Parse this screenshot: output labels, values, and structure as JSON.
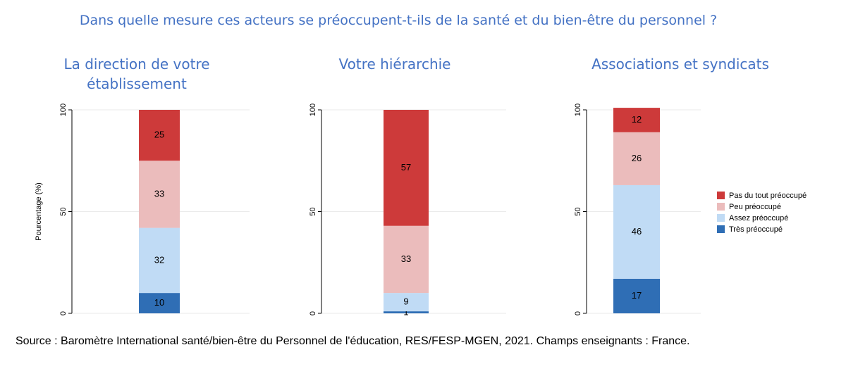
{
  "title": "Dans quelle mesure ces acteurs se préoccupent-t-ils de la santé et du bien-être du personnel ?",
  "source": "Source : Baromètre International santé/bien-être du Personnel de l'éducation, RES/FESP-MGEN, 2021. Champs enseignants : France.",
  "colors": {
    "Pas du tout préoccupé": "#cd3a3a",
    "Peu préoccupé": "#ebbcbc",
    "Assez préoccupé": "#c0dbf5",
    "Très préoccupé": "#2f6eb5"
  },
  "chart_data": [
    {
      "type": "bar",
      "stacked": true,
      "title": "La direction de votre établissement",
      "ylabel": "Pourcentage (%)",
      "ylim": [
        0,
        100
      ],
      "yticks": [
        "0",
        "50",
        "100"
      ],
      "grid": true,
      "series": [
        {
          "name": "Très préoccupé",
          "values": [
            10
          ]
        },
        {
          "name": "Assez préoccupé",
          "values": [
            32
          ]
        },
        {
          "name": "Peu préoccupé",
          "values": [
            33
          ]
        },
        {
          "name": "Pas du tout préoccupé",
          "values": [
            25
          ]
        }
      ]
    },
    {
      "type": "bar",
      "stacked": true,
      "title": "Votre hiérarchie",
      "ylabel": "",
      "ylim": [
        0,
        100
      ],
      "yticks": [
        "0",
        "50",
        "100"
      ],
      "grid": true,
      "series": [
        {
          "name": "Très préoccupé",
          "values": [
            1
          ]
        },
        {
          "name": "Assez préoccupé",
          "values": [
            9
          ]
        },
        {
          "name": "Peu préoccupé",
          "values": [
            33
          ]
        },
        {
          "name": "Pas du tout préoccupé",
          "values": [
            57
          ]
        }
      ]
    },
    {
      "type": "bar",
      "stacked": true,
      "title": "Associations et syndicats",
      "ylabel": "",
      "ylim": [
        0,
        100
      ],
      "yticks": [
        "0",
        "50",
        "100"
      ],
      "grid": true,
      "legend_position": "right",
      "series": [
        {
          "name": "Très préoccupé",
          "values": [
            17
          ]
        },
        {
          "name": "Assez préoccupé",
          "values": [
            46
          ]
        },
        {
          "name": "Peu préoccupé",
          "values": [
            26
          ]
        },
        {
          "name": "Pas du tout préoccupé",
          "values": [
            12
          ]
        }
      ]
    }
  ],
  "legend": {
    "items": [
      "Pas du tout préoccupé",
      "Peu préoccupé",
      "Assez préoccupé",
      "Très préoccupé"
    ]
  }
}
